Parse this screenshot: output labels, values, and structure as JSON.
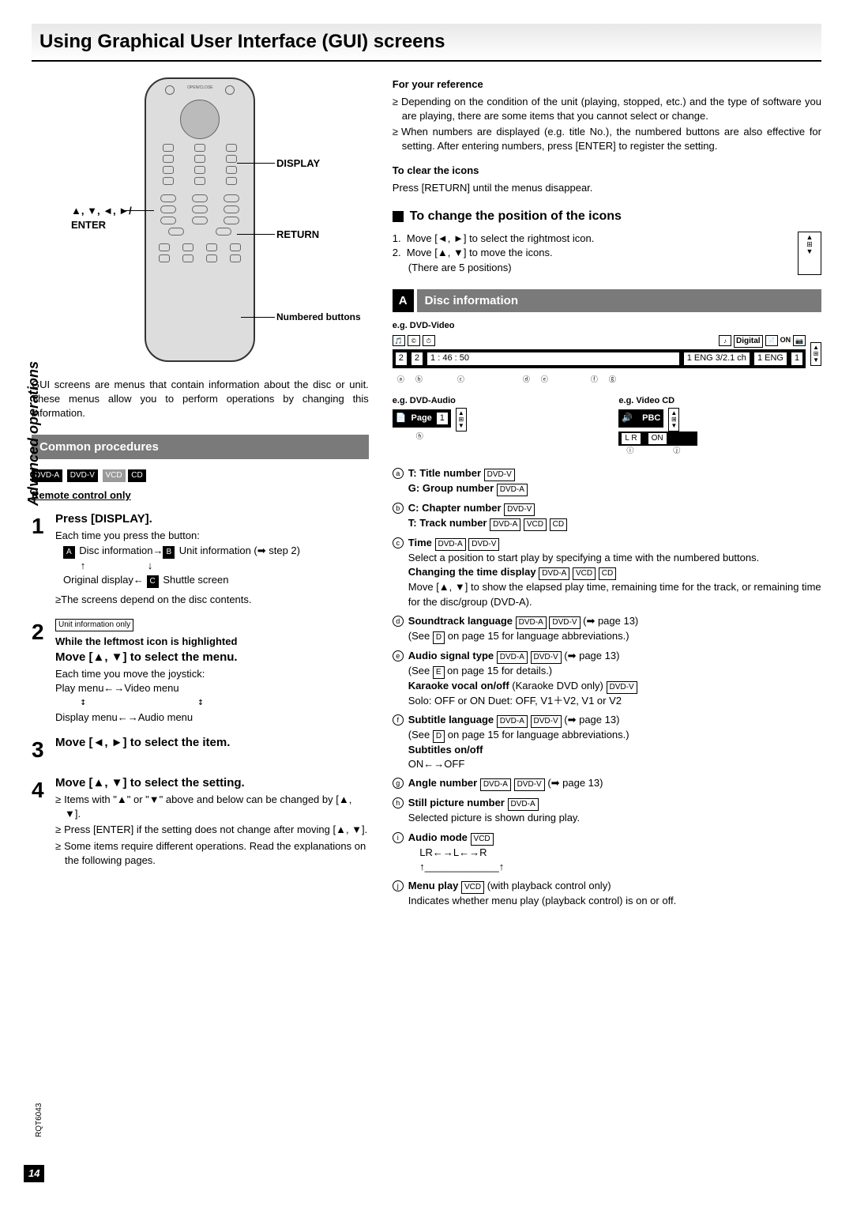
{
  "page_title": "Using Graphical User Interface (GUI) screens",
  "sidebar": "Advanced operations",
  "remote_labels": {
    "display": "DISPLAY",
    "enter_arrows": "▲, ▼, ◄, ►/",
    "enter": "ENTER",
    "return": "RETURN",
    "numbered": "Numbered buttons"
  },
  "intro": "GUI screens are menus that contain information about the disc or unit. These menus allow you to perform operations by changing this information.",
  "common": {
    "header": "Common procedures",
    "tags": [
      "DVD-A",
      "DVD-V",
      "VCD",
      "CD"
    ],
    "remote_only": "Remote control only",
    "steps": [
      {
        "n": "1",
        "title": "Press [DISPLAY].",
        "sub": "Each time you press the button:",
        "line1_a": "A",
        "line1_at": " Disc information→",
        "line1_b": "B",
        "line1_bt": " Unit information (➡ step 2)",
        "line2_c": "C",
        "line2_ct": " Shuttle screen",
        "line2_od": "Original display←",
        "note": "≥The screens depend on the disc contents."
      },
      {
        "n": "2",
        "badge": "Unit information only",
        "sub_bold": "While the leftmost icon is highlighted",
        "title": "Move [▲, ▼] to select the menu.",
        "sub": "Each time you move the joystick:",
        "menus1": "Play menu←→Video menu",
        "menus2": "Display menu←→Audio menu"
      },
      {
        "n": "3",
        "title": "Move [◄, ►] to select the item."
      },
      {
        "n": "4",
        "title": "Move [▲, ▼] to select the setting.",
        "bullets": [
          "Items with \"▲\" or \"▼\" above and below can be changed by [▲, ▼].",
          "Press [ENTER] if the setting does not change after moving [▲, ▼].",
          "Some items require different operations. Read the explanations on the following pages."
        ]
      }
    ]
  },
  "ref": {
    "heading": "For your reference",
    "bullets": [
      "Depending on the condition of the unit (playing, stopped, etc.) and the type of software you are playing, there are some items that you cannot select or change.",
      "When numbers are displayed (e.g. title No.), the numbered buttons are also effective for setting. After entering numbers, press [ENTER] to register the setting."
    ],
    "clear_heading": "To clear the icons",
    "clear_text": "Press [RETURN] until the menus disappear."
  },
  "position": {
    "heading": "To change the position of the icons",
    "steps": [
      "Move [◄, ►] to select the rightmost icon.",
      "Move [▲, ▼] to move the icons."
    ],
    "note": "(There are 5 positions)"
  },
  "disc": {
    "letter": "A",
    "title": "Disc information",
    "eg1": "e.g.  DVD-Video",
    "strip1": {
      "vals": [
        "2",
        "2",
        "1 : 46 : 50",
        "",
        "1 ENG  3/2.1 ch",
        "",
        "1  ENG",
        "1"
      ],
      "top_right": "Digital",
      "on": "ON"
    },
    "labels1": [
      "a",
      "b",
      "c",
      "d",
      "e",
      "f",
      "g"
    ],
    "eg2": "e.g.  DVD-Audio",
    "eg3": "e.g.  Video CD",
    "strip2": {
      "page": "Page",
      "val": "1"
    },
    "strip3": {
      "pbc": "PBC",
      "lr": "L R",
      "on": "ON"
    },
    "labels2": [
      "h"
    ],
    "labels3": [
      "i",
      "j"
    ],
    "items": [
      {
        "l": "a",
        "body": "<b>T:  Title number</b> [DVD-V]<br><b>G:  Group number</b> [DVD-A]"
      },
      {
        "l": "b",
        "body": "<b>C:  Chapter number</b> [DVD-V]<br><b>T:  Track number</b> [DVD-A] [VCD] [CD]"
      },
      {
        "l": "c",
        "body": "<b>Time</b> [DVD-A] [DVD-V]<br>Select a position to start play by specifying a time with the numbered buttons.<br><b>Changing the time display</b> [DVD-A] [VCD] [CD]<br>Move [▲, ▼] to show the elapsed play time, remaining time for the track, or remaining time for the disc/group (DVD-A)."
      },
      {
        "l": "d",
        "body": "<b>Soundtrack language</b> [DVD-A] [DVD-V] (➡ page 13)<br>(See [D] on page 15 for language abbreviations.)"
      },
      {
        "l": "e",
        "body": "<b>Audio signal type</b> [DVD-A] [DVD-V] (➡ page 13)<br>(See [E] on page 15 for details.)<br><b>Karaoke vocal on/off</b> (Karaoke DVD only) [DVD-V]<br>Solo:  OFF or ON        Duet:  OFF, V1＋V2, V1 or V2"
      },
      {
        "l": "f",
        "body": "<b>Subtitle language</b> [DVD-A] [DVD-V] (➡ page 13)<br>(See [D] on page 15 for language abbreviations.)<br><b>Subtitles on/off</b><br>ON←→OFF"
      },
      {
        "l": "g",
        "body": "<b>Angle number</b> [DVD-A] [DVD-V] (➡ page 13)"
      },
      {
        "l": "h",
        "body": "<b>Still picture number</b> [DVD-A]<br>Selected picture is shown during play."
      },
      {
        "l": "i",
        "body": "<b>Audio mode</b> [VCD]<br>&nbsp;&nbsp;&nbsp;&nbsp;LR←→L←→R<br>&nbsp;&nbsp;&nbsp;&nbsp;↑_____________↑"
      },
      {
        "l": "j",
        "body": "<b>Menu play</b> [VCD] (with playback control only)<br>Indicates whether menu play (playback control) is on or off."
      }
    ]
  },
  "page_num": "14",
  "doc_id": "RQT6043"
}
